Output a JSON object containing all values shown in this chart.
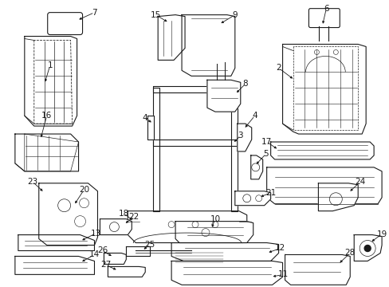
{
  "bg_color": "#ffffff",
  "line_color": "#1a1a1a",
  "figsize": [
    4.89,
    3.6
  ],
  "dpi": 100,
  "font_size": 7.5,
  "lw": 0.8
}
